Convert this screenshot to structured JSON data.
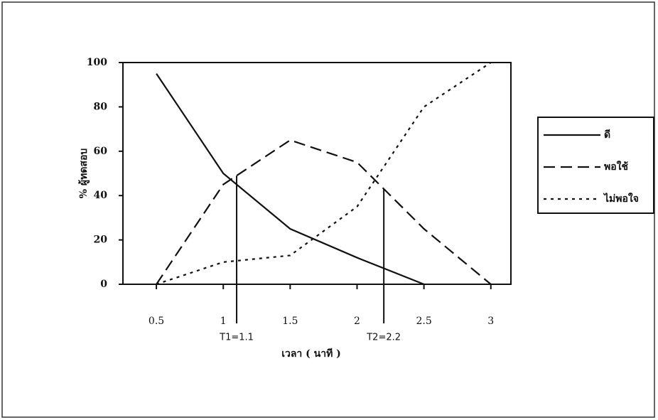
{
  "chart_data": {
    "type": "line",
    "x_label": "เวลา ( นาที )",
    "y_label": "% ผู้ทดสอบ",
    "x": [
      0.5,
      1,
      1.5,
      2,
      2.5,
      3
    ],
    "series": [
      {
        "name": "ดี",
        "color": "#111111",
        "dash": "solid",
        "values": [
          95,
          50,
          25,
          12,
          0,
          null
        ]
      },
      {
        "name": "พอใช้",
        "color": "#111111",
        "dash": "dashed",
        "values": [
          0,
          45,
          65,
          55,
          25,
          0
        ]
      },
      {
        "name": "ไม่พอใจ",
        "color": "#111111",
        "dash": "dotted",
        "values": [
          0,
          10,
          13,
          35,
          80,
          100
        ]
      }
    ],
    "xlim": [
      0.25,
      3.15
    ],
    "xticks": [
      0.5,
      1,
      1.5,
      2,
      2.5,
      3
    ],
    "ylim": [
      0,
      100
    ],
    "yticks": [
      0,
      20,
      40,
      60,
      80,
      100
    ],
    "annotations": [
      {
        "x": 1.1,
        "label": "T1=1.1"
      },
      {
        "x": 2.2,
        "label": "T2=2.2"
      }
    ],
    "legend": "right"
  }
}
